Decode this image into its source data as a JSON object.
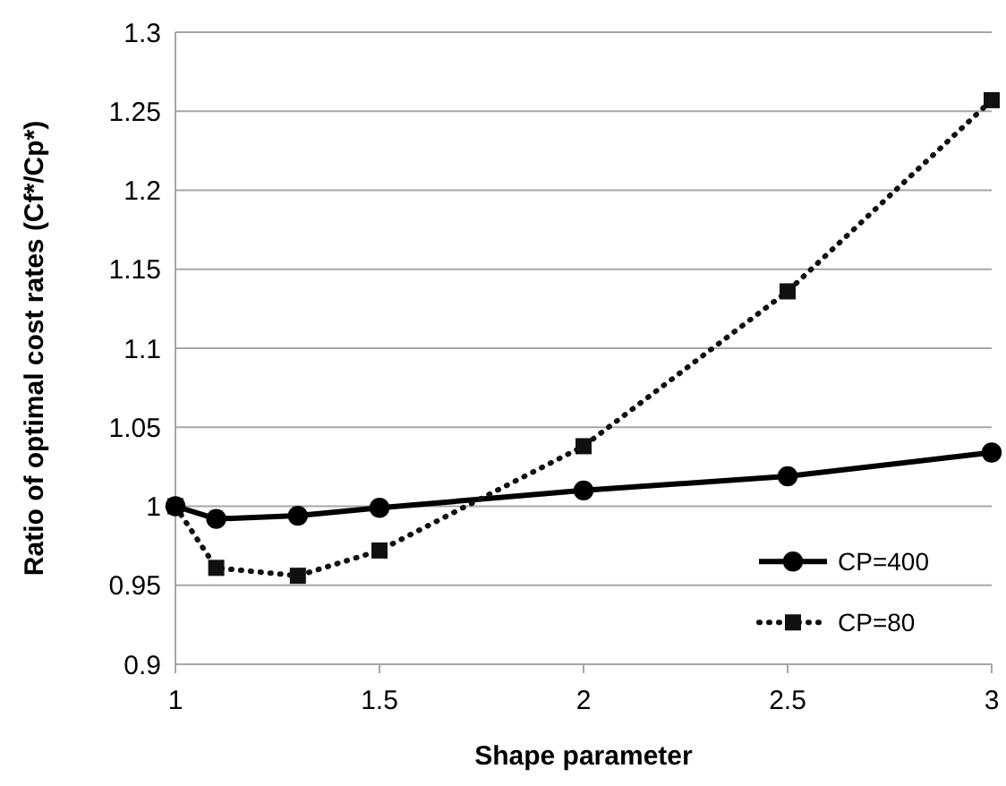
{
  "chart_data": {
    "type": "line",
    "xlabel": "Shape parameter",
    "ylabel": "Ratio of optimal cost rates (Cf*/Cp*)",
    "x": [
      1,
      1.1,
      1.3,
      1.5,
      2,
      2.5,
      3
    ],
    "series": [
      {
        "name": "CP=400",
        "color": "#000000",
        "marker": "circle",
        "line_style": "solid",
        "values": [
          1.0,
          0.992,
          0.994,
          0.999,
          1.01,
          1.019,
          1.034
        ]
      },
      {
        "name": "CP=80",
        "color": "#111111",
        "marker": "square",
        "line_style": "dotted",
        "values": [
          1.0,
          0.961,
          0.956,
          0.972,
          1.038,
          1.136,
          1.257
        ]
      }
    ],
    "xlim": [
      1,
      3
    ],
    "xticks": [
      1,
      1.5,
      2,
      2.5,
      3
    ],
    "ylim": [
      0.9,
      1.3
    ],
    "yticks": [
      0.9,
      0.95,
      1,
      1.05,
      1.1,
      1.15,
      1.2,
      1.25,
      1.3
    ],
    "grid": "y",
    "legend": "bottom right"
  }
}
